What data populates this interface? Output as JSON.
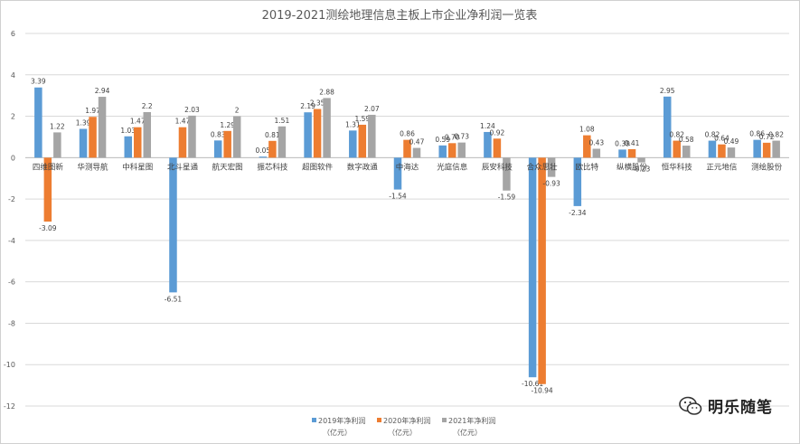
{
  "chart_data": {
    "type": "bar",
    "title": "2019-2021测绘地理信息主板上市企业净利润一览表",
    "categories": [
      "四维图新",
      "华测导航",
      "中科星图",
      "北斗星通",
      "航天宏图",
      "振芯科技",
      "超图软件",
      "数字政通",
      "中海达",
      "光庭信息",
      "辰安科技",
      "合众思壮",
      "欧比特",
      "纵横股份",
      "恒华科技",
      "正元地信",
      "测绘股份"
    ],
    "series": [
      {
        "name": "2019年净利润（亿元）",
        "color": "#5b9bd5",
        "values": [
          3.39,
          1.39,
          1.03,
          -6.51,
          0.83,
          0.05,
          2.19,
          1.31,
          -1.54,
          0.59,
          1.24,
          -10.61,
          -2.34,
          0.39,
          2.95,
          0.82,
          0.86
        ]
      },
      {
        "name": "2020年净利润（亿元）",
        "color": "#ed7d31",
        "values": [
          -3.09,
          1.97,
          1.47,
          1.47,
          1.29,
          0.81,
          2.35,
          1.59,
          0.86,
          0.7,
          0.92,
          -10.94,
          1.08,
          0.41,
          0.82,
          0.64,
          0.72
        ]
      },
      {
        "name": "2021年净利润（亿元）",
        "color": "#a5a5a5",
        "values": [
          1.22,
          2.94,
          2.2,
          2.03,
          2,
          1.51,
          2.88,
          2.07,
          0.47,
          0.73,
          -1.59,
          -0.93,
          0.43,
          -0.23,
          0.58,
          0.49,
          0.82
        ]
      }
    ],
    "data_labels": [
      [
        "3.39",
        "1.39",
        "1.03",
        "-6.51",
        "0.83",
        "0.05",
        "2.19",
        "1.31",
        "-1.54",
        "0.59",
        "1.24",
        "-10.61",
        "-2.34",
        "0.39",
        "2.95",
        "0.82",
        "0.86"
      ],
      [
        "-3.09",
        "1.97",
        "1.47",
        "1.47",
        "1.29",
        "0.81",
        "2.35",
        "1.59",
        "0.86",
        "0.70",
        "0.92",
        "-10.94",
        "1.08",
        "0.41",
        "0.82",
        "0.64",
        "0.72"
      ],
      [
        "1.22",
        "2.94",
        "2.2",
        "2.03",
        "2",
        "1.51",
        "2.88",
        "2.07",
        "0.47",
        "0.73",
        "-1.59",
        "-0.93",
        "0.43",
        "-0.23",
        "0.58",
        "0.49",
        "0.82"
      ]
    ],
    "yticks": [
      "-12",
      "-10",
      "-8",
      "-6",
      "-4",
      "-2",
      "0",
      "2",
      "4",
      "6"
    ],
    "ylim": [
      -12,
      6
    ],
    "grid": true,
    "legend_position": "bottom",
    "legend_labels": [
      {
        "line1": "2019年净利润",
        "line2": "（亿元）"
      },
      {
        "line1": "2020年净利润",
        "line2": "（亿元）"
      },
      {
        "line1": "2021年净利润",
        "line2": "（亿元）"
      }
    ]
  },
  "watermark": {
    "text": "明乐随笔"
  }
}
